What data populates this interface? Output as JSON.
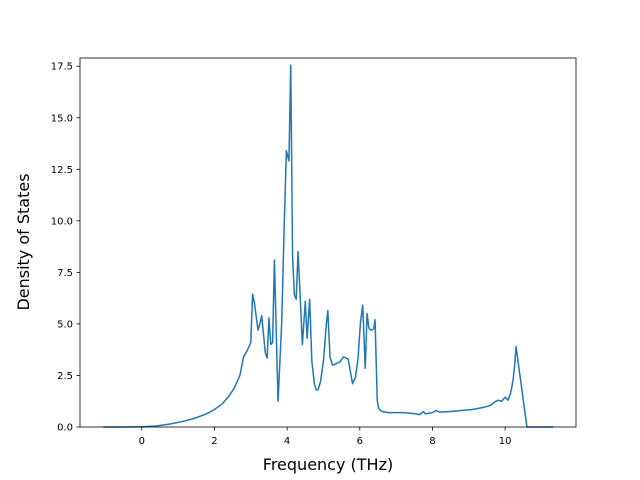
{
  "chart_data": {
    "type": "line",
    "xlabel": "Frequency (THz)",
    "ylabel": "Density of States",
    "xlim": [
      -1.7,
      11.95
    ],
    "ylim": [
      0,
      17.9
    ],
    "x_ticks": [
      0,
      2,
      4,
      6,
      8,
      10
    ],
    "x_tick_labels": [
      "0",
      "2",
      "4",
      "6",
      "8",
      "10"
    ],
    "y_ticks": [
      0,
      2.5,
      5,
      7.5,
      10,
      12.5,
      15,
      17.5
    ],
    "y_tick_labels": [
      "0.0",
      "2.5",
      "5.0",
      "7.5",
      "10.0",
      "12.5",
      "15.0",
      "17.5"
    ],
    "grid": false,
    "colors": {
      "line": "#1f77b4",
      "axes": "#000000",
      "background": "#ffffff"
    },
    "series": [
      {
        "x": [
          -1.06,
          -0.5,
          0,
          0.4,
          0.8,
          1.2,
          1.5,
          1.8,
          2.0,
          2.2,
          2.4,
          2.55,
          2.7,
          2.8,
          2.9,
          3.0,
          3.05,
          3.1,
          3.2,
          3.25,
          3.3,
          3.4,
          3.45,
          3.5,
          3.55,
          3.6,
          3.65,
          3.75,
          3.85,
          3.92,
          3.98,
          4.05,
          4.1,
          4.15,
          4.2,
          4.25,
          4.3,
          4.35,
          4.42,
          4.5,
          4.55,
          4.62,
          4.68,
          4.75,
          4.8,
          4.85,
          4.92,
          5.0,
          5.08,
          5.12,
          5.18,
          5.25,
          5.32,
          5.45,
          5.55,
          5.68,
          5.8,
          5.88,
          5.95,
          6.02,
          6.08,
          6.15,
          6.2,
          6.25,
          6.3,
          6.38,
          6.42,
          6.48,
          6.52,
          6.6,
          6.8,
          7.2,
          7.5,
          7.65,
          7.75,
          7.8,
          7.85,
          8.0,
          8.1,
          8.2,
          8.5,
          8.8,
          9.1,
          9.4,
          9.6,
          9.7,
          9.8,
          9.9,
          10.0,
          10.08,
          10.12,
          10.15,
          10.18,
          10.22,
          10.26,
          10.3,
          10.6,
          11.32
        ],
        "y": [
          0,
          0,
          0.01,
          0.05,
          0.15,
          0.3,
          0.45,
          0.65,
          0.85,
          1.1,
          1.5,
          1.9,
          2.5,
          3.4,
          3.7,
          4.1,
          6.45,
          6.0,
          4.7,
          5.0,
          5.4,
          3.6,
          3.35,
          5.3,
          4.0,
          4.1,
          8.1,
          1.25,
          5.0,
          9.8,
          13.4,
          12.9,
          17.55,
          8.3,
          6.4,
          6.2,
          8.5,
          6.7,
          4.0,
          6.1,
          4.3,
          6.2,
          3.2,
          2.1,
          1.8,
          1.8,
          2.2,
          3.2,
          5.0,
          5.65,
          3.4,
          3.0,
          3.05,
          3.15,
          3.4,
          3.3,
          2.1,
          2.4,
          3.3,
          5.1,
          5.9,
          2.85,
          5.5,
          4.8,
          4.7,
          4.75,
          5.2,
          1.3,
          0.9,
          0.75,
          0.7,
          0.7,
          0.65,
          0.6,
          0.75,
          0.65,
          0.65,
          0.7,
          0.8,
          0.72,
          0.75,
          0.8,
          0.85,
          0.95,
          1.05,
          1.2,
          1.3,
          1.25,
          1.45,
          1.3,
          1.5,
          1.65,
          1.9,
          2.3,
          2.95,
          3.9,
          0,
          0
        ]
      }
    ]
  }
}
